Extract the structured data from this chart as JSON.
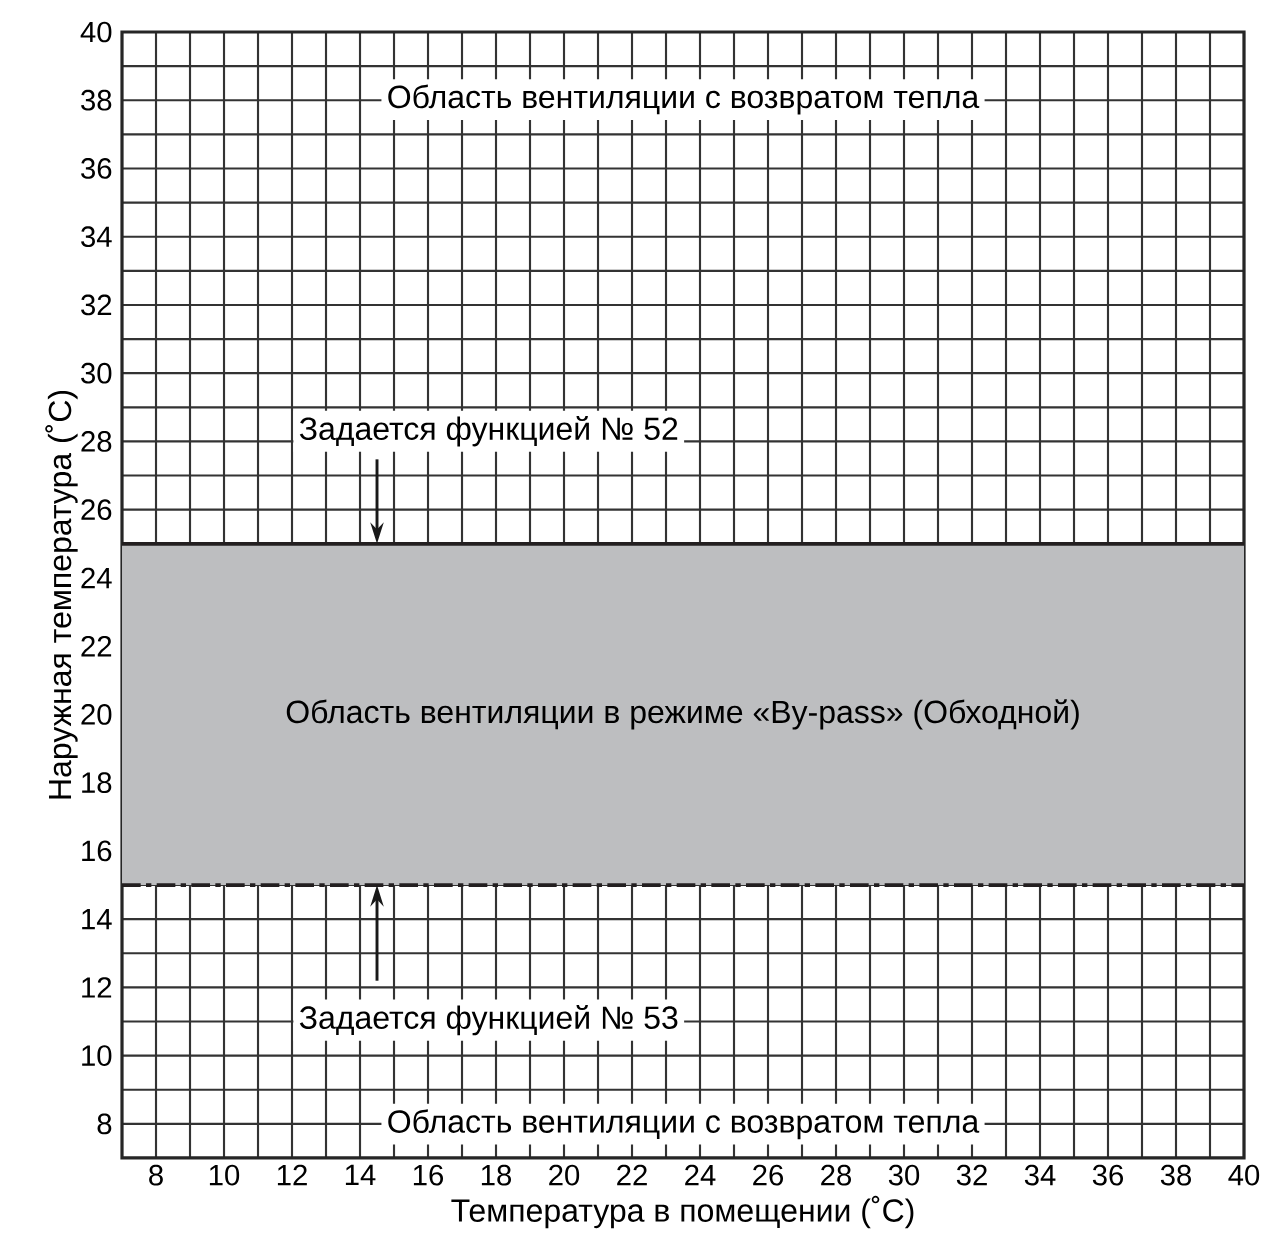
{
  "chart_data": {
    "type": "line",
    "xlabel": "Температура в помещении (˚C)",
    "ylabel": "Наружная температура (˚C)",
    "xlim": [
      7,
      40
    ],
    "ylim": [
      7,
      40
    ],
    "xticks": [
      8,
      {
        "value": 9,
        "label": null
      },
      10,
      {
        "value": 11,
        "label": null
      },
      12,
      {
        "value": 13,
        "label": null
      },
      14,
      {
        "value": 15,
        "label": null
      },
      16,
      {
        "value": 17,
        "label": null
      },
      18,
      {
        "value": 19,
        "label": null
      },
      20,
      {
        "value": 21,
        "label": null
      },
      22,
      {
        "value": 23,
        "label": null
      },
      24,
      {
        "value": 25,
        "label": null
      },
      26,
      {
        "value": 27,
        "label": null
      },
      28,
      {
        "value": 29,
        "label": null
      },
      30,
      {
        "value": 31,
        "label": null
      },
      32,
      {
        "value": 33,
        "label": null
      },
      34,
      {
        "value": 35,
        "label": null
      },
      36,
      {
        "value": 37,
        "label": null
      },
      38,
      {
        "value": 39,
        "label": null
      },
      40
    ],
    "yticks": [
      8,
      {
        "value": 9,
        "label": null
      },
      10,
      {
        "value": 11,
        "label": null
      },
      12,
      {
        "value": 13,
        "label": null
      },
      14,
      {
        "value": 15,
        "label": null
      },
      16,
      {
        "value": 17,
        "label": null
      },
      18,
      {
        "value": 19,
        "label": null
      },
      20,
      {
        "value": 21,
        "label": null
      },
      22,
      {
        "value": 23,
        "label": null
      },
      24,
      {
        "value": 25,
        "label": null
      },
      26,
      {
        "value": 27,
        "label": null
      },
      28,
      {
        "value": 29,
        "label": null
      },
      30,
      {
        "value": 31,
        "label": null
      },
      32,
      {
        "value": 33,
        "label": null
      },
      34,
      {
        "value": 35,
        "label": null
      },
      36,
      {
        "value": 37,
        "label": null
      },
      38,
      {
        "value": 39,
        "label": null
      },
      40
    ],
    "grid": true,
    "x": [
      7,
      40
    ],
    "series": [
      {
        "color": "#231f20",
        "line_style": "solid",
        "values": [
          25,
          25
        ]
      },
      {
        "color": "#231f20",
        "line_style": "dashed",
        "values": [
          15,
          15
        ]
      }
    ],
    "bands": [
      {
        "axis": "y",
        "from": 15,
        "to": 25,
        "label": "Область вентиляции в режиме «By-pass» (Обходной)",
        "color": "#bdbec0"
      }
    ],
    "annotations": [
      {
        "text": "Задается функцией № 52",
        "x": 14.5,
        "y": 25
      },
      {
        "text": "Задается функцией № 53",
        "x": 14.5,
        "y": 15
      },
      "Область вентиляции с возвратом тепла",
      "Область вентиляции с возвратом тепла"
    ]
  }
}
